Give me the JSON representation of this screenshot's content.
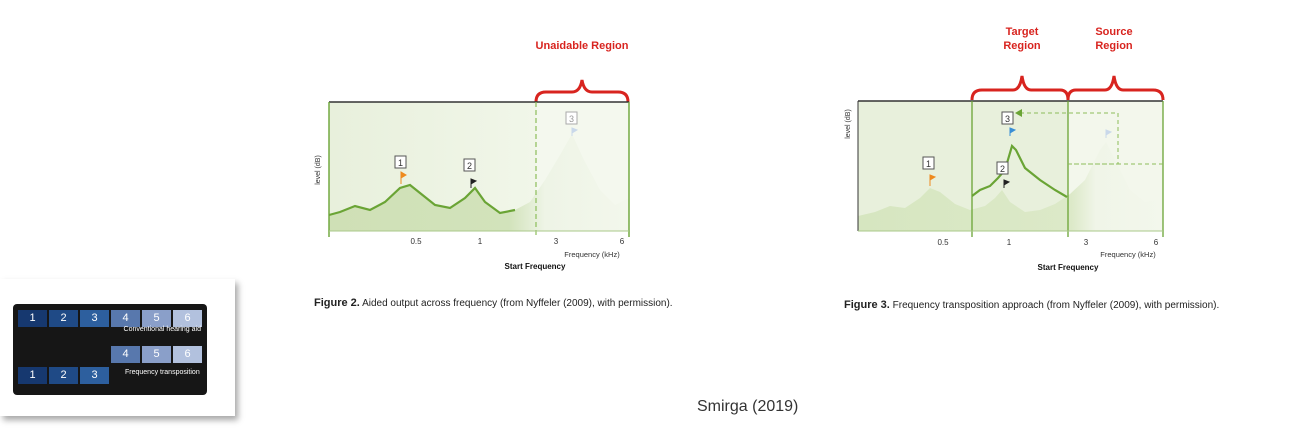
{
  "bars_panel": {
    "row1": [
      "1",
      "2",
      "3",
      "4",
      "5",
      "6"
    ],
    "row1_label": "Conventional hearing aid",
    "row2": [
      "4",
      "5",
      "6"
    ],
    "row3": [
      "1",
      "2",
      "3"
    ],
    "row3_label": "Frequency transposition",
    "colors": [
      "#16386f",
      "#1f4a86",
      "#2d5f9e",
      "#5878ad",
      "#8a9fc9",
      "#b2c1de"
    ]
  },
  "figure2": {
    "region_label": "Unaidable Region",
    "y_axis": "level (dB)",
    "ticks": [
      "0.5",
      "1",
      "3",
      "6"
    ],
    "x_unit": "Frequency (kHz)",
    "x_title": "Start Frequency",
    "markers": [
      "1",
      "2",
      "3"
    ],
    "caption_bold": "Figure 2.",
    "caption_text": "Aided output across frequency (from Nyffeler (2009), with permission)."
  },
  "figure3": {
    "target_label_1": "Target",
    "target_label_2": "Region",
    "source_label_1": "Source",
    "source_label_2": "Region",
    "y_axis": "level (dB)",
    "ticks": [
      "0.5",
      "1",
      "3",
      "6"
    ],
    "x_unit": "Frequency (kHz)",
    "x_title": "Start Frequency",
    "markers": [
      "1",
      "2",
      "3"
    ],
    "caption_bold": "Figure 3.",
    "caption_text": "Frequency transposition approach (from Nyffeler (2009), with permission)."
  },
  "credit": "Smirga (2019)",
  "colors": {
    "bracket": "#d8241f",
    "curve": "#6aa435",
    "panel": "#e6efd9",
    "flag_orange": "#ee8a1f",
    "flag_blue": "#3a8fd6"
  }
}
